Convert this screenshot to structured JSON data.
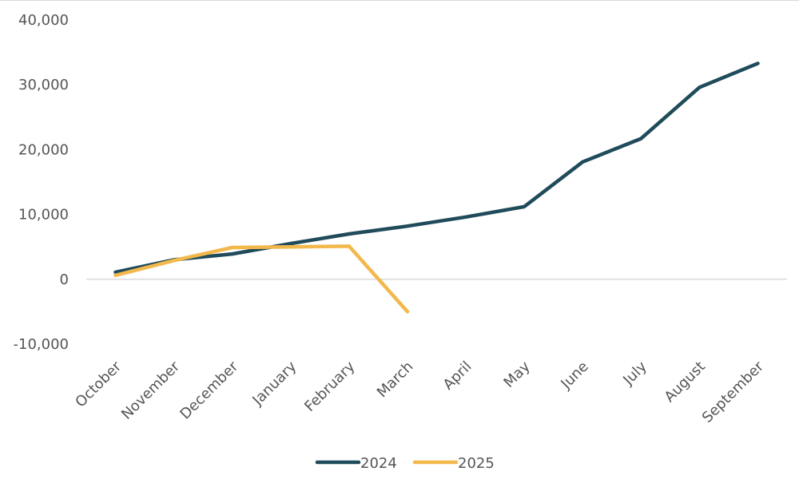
{
  "chart_data": {
    "type": "line",
    "title": "",
    "xlabel": "",
    "ylabel": "",
    "categories": [
      "October",
      "November",
      "December",
      "January",
      "February",
      "March",
      "April",
      "May",
      "June",
      "July",
      "August",
      "September"
    ],
    "yticks": [
      "-10,000",
      "0",
      "10,000",
      "20,000",
      "30,000",
      "40,000"
    ],
    "ylim": [
      -10000,
      40000
    ],
    "grid": false,
    "zero_line": true,
    "legend_position": "bottom",
    "series": [
      {
        "name": "2024",
        "color": "#1f4b5a",
        "values": [
          1100,
          3000,
          3900,
          5500,
          7000,
          8200,
          9600,
          11200,
          18100,
          21700,
          29600,
          33300
        ]
      },
      {
        "name": "2025",
        "color": "#f2b84b",
        "values": [
          600,
          2900,
          4900,
          5000,
          5100,
          -5000,
          null,
          null,
          null,
          null,
          null,
          null
        ]
      }
    ]
  }
}
